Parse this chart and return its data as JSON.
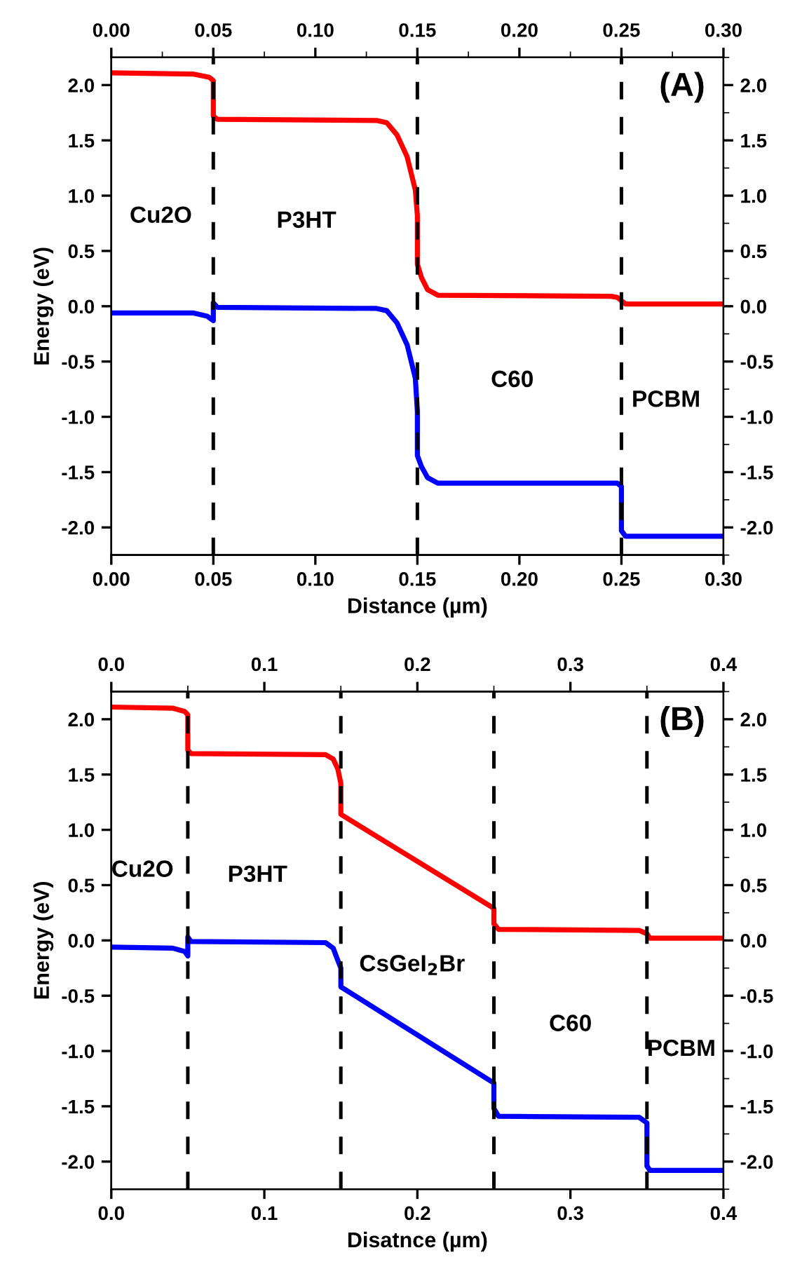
{
  "chart_data": [
    {
      "type": "line",
      "ylabel": "Energy (eV)",
      "xlabel": "Distance (µm)",
      "annotations": [
        "Cu2O",
        "P3HT",
        "C60",
        "PCBM",
        "(A)"
      ],
      "series": [
        {
          "color": "#ff0000",
          "x": [
            0,
            0.04,
            0.048,
            0.05,
            0.05,
            0.052,
            0.13,
            0.135,
            0.14,
            0.145,
            0.149,
            0.15,
            0.15,
            0.152,
            0.155,
            0.16,
            0.245,
            0.248,
            0.25,
            0.252,
            0.3
          ],
          "values": [
            2.11,
            2.1,
            2.07,
            2.04,
            1.72,
            1.69,
            1.68,
            1.66,
            1.55,
            1.35,
            1.05,
            0.82,
            0.38,
            0.26,
            0.15,
            0.1,
            0.09,
            0.08,
            0.05,
            0.02,
            0.02
          ]
        },
        {
          "color": "#0000ff",
          "x": [
            0,
            0.04,
            0.047,
            0.05,
            0.05,
            0.052,
            0.13,
            0.135,
            0.14,
            0.145,
            0.149,
            0.15,
            0.15,
            0.152,
            0.155,
            0.16,
            0.248,
            0.25,
            0.25,
            0.252,
            0.3
          ],
          "values": [
            -0.06,
            -0.06,
            -0.09,
            -0.13,
            0.03,
            -0.01,
            -0.02,
            -0.04,
            -0.15,
            -0.35,
            -0.65,
            -0.95,
            -1.35,
            -1.45,
            -1.55,
            -1.6,
            -1.6,
            -1.63,
            -2.03,
            -2.08,
            -2.08
          ]
        }
      ],
      "ref_lines": [
        {
          "axis": "x",
          "value": 0.05,
          "color": "#000000",
          "line_style": "dashed"
        },
        {
          "axis": "x",
          "value": 0.15,
          "color": "#000000",
          "line_style": "dashed"
        },
        {
          "axis": "x",
          "value": 0.25,
          "color": "#000000",
          "line_style": "dashed"
        }
      ],
      "xlim": [
        0,
        0.3
      ],
      "xticks": [
        {
          "value": 0,
          "label": "0.00"
        },
        {
          "value": 0.05,
          "label": "0.05"
        },
        {
          "value": 0.1,
          "label": "0.10"
        },
        {
          "value": 0.15,
          "label": "0.15"
        },
        {
          "value": 0.2,
          "label": "0.20"
        },
        {
          "value": 0.25,
          "label": "0.25"
        },
        {
          "value": 0.3,
          "label": "0.30"
        }
      ],
      "x2lim": [
        0,
        0.3
      ],
      "x2ticks": [
        {
          "value": 0,
          "label": "0.00"
        },
        {
          "value": 0.05,
          "label": "0.05"
        },
        {
          "value": 0.1,
          "label": "0.10"
        },
        {
          "value": 0.15,
          "label": "0.15"
        },
        {
          "value": 0.2,
          "label": "0.20"
        },
        {
          "value": 0.25,
          "label": "0.25"
        },
        {
          "value": 0.3,
          "label": "0.30"
        }
      ],
      "ylim": [
        -2.25,
        2.25
      ],
      "yticks": [
        {
          "value": -2,
          "label": "-2.0"
        },
        {
          "value": -1.5,
          "label": "-1.5"
        },
        {
          "value": -1,
          "label": "-1.0"
        },
        {
          "value": -0.5,
          "label": "-0.5"
        },
        {
          "value": 0,
          "label": "0.0"
        },
        {
          "value": 0.5,
          "label": "0.5"
        },
        {
          "value": 1,
          "label": "1.0"
        },
        {
          "value": 1.5,
          "label": "1.5"
        },
        {
          "value": 2,
          "label": "2.0"
        }
      ],
      "y2lim": [
        -2.25,
        2.25
      ],
      "y2ticks": [
        {
          "value": -2,
          "label": "-2.0"
        },
        {
          "value": -1.5,
          "label": "-1.5"
        },
        {
          "value": -1,
          "label": "-1.0"
        },
        {
          "value": -0.5,
          "label": "-0.5"
        },
        {
          "value": 0,
          "label": "0.0"
        },
        {
          "value": 0.5,
          "label": "0.5"
        },
        {
          "value": 1,
          "label": "1.0"
        },
        {
          "value": 1.5,
          "label": "1.5"
        },
        {
          "value": 2,
          "label": "2.0"
        }
      ],
      "grid": false,
      "legend": false,
      "marker": "none",
      "line_style": "solid"
    },
    {
      "type": "line",
      "ylabel": "Energy (eV)",
      "xlabel": "Disatnce (µm)",
      "annotations": [
        "Cu2O",
        "P3HT",
        "CsGeI$_{2}$Br",
        "C60",
        "PCBM",
        "(B)"
      ],
      "series": [
        {
          "color": "#ff0000",
          "x": [
            0,
            0.04,
            0.048,
            0.05,
            0.05,
            0.052,
            0.14,
            0.145,
            0.148,
            0.15,
            0.15,
            0.25,
            0.25,
            0.253,
            0.345,
            0.35,
            0.352,
            0.4
          ],
          "values": [
            2.11,
            2.1,
            2.07,
            2.04,
            1.72,
            1.69,
            1.68,
            1.64,
            1.55,
            1.42,
            1.14,
            0.29,
            0.15,
            0.1,
            0.09,
            0.06,
            0.02,
            0.02
          ]
        },
        {
          "color": "#0000ff",
          "x": [
            0,
            0.04,
            0.048,
            0.05,
            0.05,
            0.052,
            0.14,
            0.145,
            0.148,
            0.15,
            0.15,
            0.25,
            0.25,
            0.253,
            0.345,
            0.35,
            0.35,
            0.352,
            0.4
          ],
          "values": [
            -0.06,
            -0.07,
            -0.1,
            -0.14,
            0.03,
            -0.01,
            -0.02,
            -0.07,
            -0.18,
            -0.25,
            -0.42,
            -1.29,
            -1.52,
            -1.59,
            -1.6,
            -1.65,
            -2.04,
            -2.08,
            -2.08
          ]
        }
      ],
      "ref_lines": [
        {
          "axis": "x",
          "value": 0.05,
          "color": "#000000",
          "line_style": "dashed"
        },
        {
          "axis": "x",
          "value": 0.15,
          "color": "#000000",
          "line_style": "dashed"
        },
        {
          "axis": "x",
          "value": 0.25,
          "color": "#000000",
          "line_style": "dashed"
        },
        {
          "axis": "x",
          "value": 0.35,
          "color": "#000000",
          "line_style": "dashed"
        }
      ],
      "xlim": [
        0,
        0.4
      ],
      "xticks": [
        {
          "value": 0,
          "label": "0.0"
        },
        {
          "value": 0.1,
          "label": "0.1"
        },
        {
          "value": 0.2,
          "label": "0.2"
        },
        {
          "value": 0.3,
          "label": "0.3"
        },
        {
          "value": 0.4,
          "label": "0.4"
        }
      ],
      "x2lim": [
        0,
        0.4
      ],
      "x2ticks": [
        {
          "value": 0,
          "label": "0.0"
        },
        {
          "value": 0.1,
          "label": "0.1"
        },
        {
          "value": 0.2,
          "label": "0.2"
        },
        {
          "value": 0.3,
          "label": "0.3"
        },
        {
          "value": 0.4,
          "label": "0.4"
        }
      ],
      "ylim": [
        -2.25,
        2.25
      ],
      "yticks": [
        {
          "value": -2,
          "label": "-2.0"
        },
        {
          "value": -1.5,
          "label": "-1.5"
        },
        {
          "value": -1,
          "label": "-1.0"
        },
        {
          "value": -0.5,
          "label": "-0.5"
        },
        {
          "value": 0,
          "label": "0.0"
        },
        {
          "value": 0.5,
          "label": "0.5"
        },
        {
          "value": 1,
          "label": "1.0"
        },
        {
          "value": 1.5,
          "label": "1.5"
        },
        {
          "value": 2,
          "label": "2.0"
        }
      ],
      "y2lim": [
        -2.25,
        2.25
      ],
      "y2ticks": [
        {
          "value": -2,
          "label": "-2.0"
        },
        {
          "value": -1.5,
          "label": "-1.5"
        },
        {
          "value": -1,
          "label": "-1.0"
        },
        {
          "value": -0.5,
          "label": "-0.5"
        },
        {
          "value": 0,
          "label": "0.0"
        },
        {
          "value": 0.5,
          "label": "0.5"
        },
        {
          "value": 1,
          "label": "1.0"
        },
        {
          "value": 1.5,
          "label": "1.5"
        },
        {
          "value": 2,
          "label": "2.0"
        }
      ],
      "grid": false,
      "legend": false,
      "marker": "none",
      "line_style": "solid"
    }
  ]
}
